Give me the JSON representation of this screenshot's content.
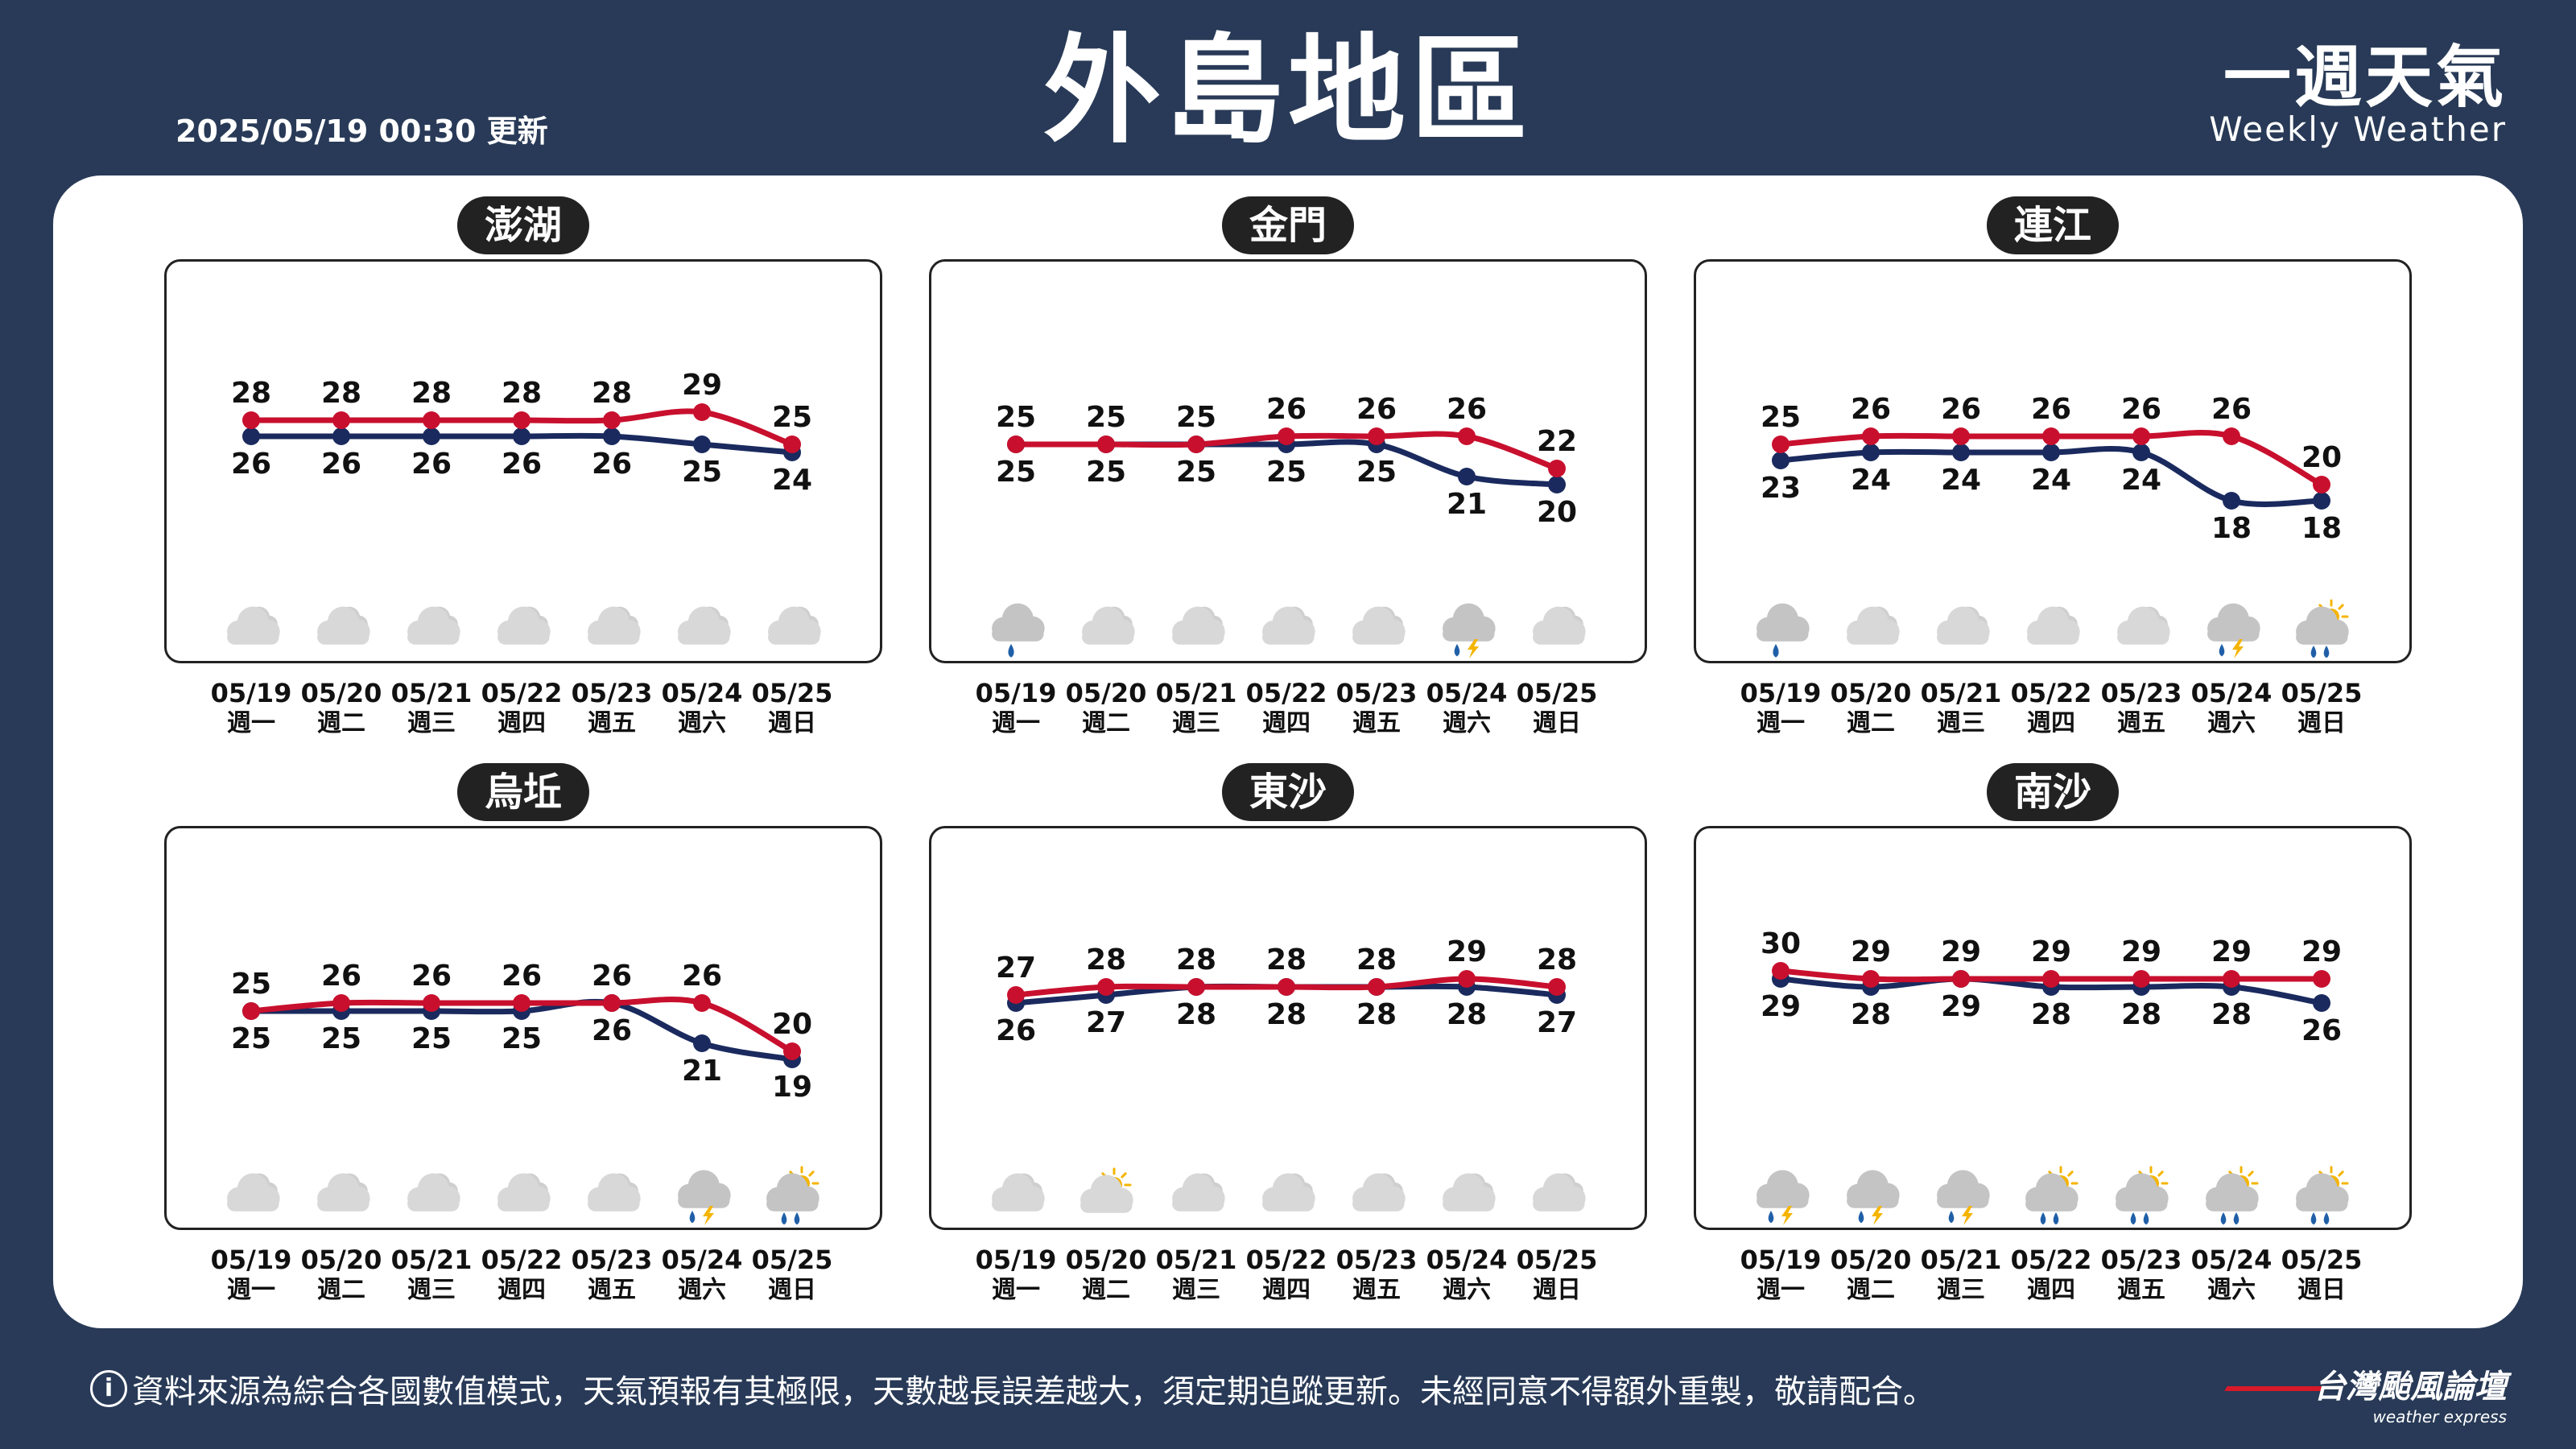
{
  "header": {
    "title": "外島地區",
    "update_time": "2025/05/19 00:30 更新",
    "brand_cn": "一週天氣",
    "brand_en": "Weekly Weather"
  },
  "footer": {
    "info_icon": "i",
    "note": "資料來源為綜合各國數值模式，天氣預報有其極限，天數越長誤差越大，須定期追蹤更新。未經同意不得額外重製，敬請配合。",
    "logo_cn": "台灣颱風論壇",
    "logo_en": "weather express"
  },
  "colors": {
    "background": "#283a57",
    "high_line": "#c8102e",
    "low_line": "#1a2a5e"
  },
  "chart_data": [
    {
      "type": "line",
      "title": "澎湖",
      "categories": [
        "05/19",
        "05/20",
        "05/21",
        "05/22",
        "05/23",
        "05/24",
        "05/25"
      ],
      "weekdays": [
        "週一",
        "週二",
        "週三",
        "週四",
        "週五",
        "週六",
        "週日"
      ],
      "series": [
        {
          "values": [
            28,
            28,
            28,
            28,
            28,
            29,
            25
          ],
          "color": "#c8102e"
        },
        {
          "values": [
            26,
            26,
            26,
            26,
            26,
            25,
            24
          ],
          "color": "#1a2a5e"
        }
      ],
      "icons": [
        "cloudy-icon",
        "cloudy-icon",
        "cloudy-icon",
        "cloudy-icon",
        "cloudy-icon",
        "cloudy-icon",
        "cloudy-icon"
      ]
    },
    {
      "type": "line",
      "title": "金門",
      "categories": [
        "05/19",
        "05/20",
        "05/21",
        "05/22",
        "05/23",
        "05/24",
        "05/25"
      ],
      "weekdays": [
        "週一",
        "週二",
        "週三",
        "週四",
        "週五",
        "週六",
        "週日"
      ],
      "series": [
        {
          "values": [
            25,
            25,
            25,
            26,
            26,
            26,
            22
          ],
          "color": "#c8102e"
        },
        {
          "values": [
            25,
            25,
            25,
            25,
            25,
            21,
            20
          ],
          "color": "#1a2a5e"
        }
      ],
      "icons": [
        "rain-icon",
        "cloudy-icon",
        "cloudy-icon",
        "cloudy-icon",
        "cloudy-icon",
        "thunderstorm-icon",
        "cloudy-icon"
      ]
    },
    {
      "type": "line",
      "title": "連江",
      "categories": [
        "05/19",
        "05/20",
        "05/21",
        "05/22",
        "05/23",
        "05/24",
        "05/25"
      ],
      "weekdays": [
        "週一",
        "週二",
        "週三",
        "週四",
        "週五",
        "週六",
        "週日"
      ],
      "series": [
        {
          "values": [
            25,
            26,
            26,
            26,
            26,
            26,
            20
          ],
          "color": "#c8102e"
        },
        {
          "values": [
            23,
            24,
            24,
            24,
            24,
            18,
            18
          ],
          "color": "#1a2a5e"
        }
      ],
      "icons": [
        "rain-icon",
        "cloudy-icon",
        "cloudy-icon",
        "cloudy-icon",
        "cloudy-icon",
        "thunderstorm-rain-icon",
        "sun-cloud-rain-icon"
      ]
    },
    {
      "type": "line",
      "title": "烏坵",
      "categories": [
        "05/19",
        "05/20",
        "05/21",
        "05/22",
        "05/23",
        "05/24",
        "05/25"
      ],
      "weekdays": [
        "週一",
        "週二",
        "週三",
        "週四",
        "週五",
        "週六",
        "週日"
      ],
      "series": [
        {
          "values": [
            25,
            26,
            26,
            26,
            26,
            26,
            20
          ],
          "color": "#c8102e"
        },
        {
          "values": [
            25,
            25,
            25,
            25,
            26,
            21,
            19
          ],
          "color": "#1a2a5e"
        }
      ],
      "icons": [
        "cloudy-icon",
        "cloudy-icon",
        "cloudy-icon",
        "cloudy-icon",
        "cloudy-icon",
        "thunderstorm-rain-icon",
        "sun-cloud-rain-icon"
      ]
    },
    {
      "type": "line",
      "title": "東沙",
      "categories": [
        "05/19",
        "05/20",
        "05/21",
        "05/22",
        "05/23",
        "05/24",
        "05/25"
      ],
      "weekdays": [
        "週一",
        "週二",
        "週三",
        "週四",
        "週五",
        "週六",
        "週日"
      ],
      "series": [
        {
          "values": [
            27,
            28,
            28,
            28,
            28,
            29,
            28
          ],
          "color": "#c8102e"
        },
        {
          "values": [
            26,
            27,
            28,
            28,
            28,
            28,
            27
          ],
          "color": "#1a2a5e"
        }
      ],
      "icons": [
        "cloudy-icon",
        "sun-cloud-icon",
        "cloudy-icon",
        "cloudy-icon",
        "cloudy-icon",
        "cloudy-icon",
        "cloudy-icon"
      ]
    },
    {
      "type": "line",
      "title": "南沙",
      "categories": [
        "05/19",
        "05/20",
        "05/21",
        "05/22",
        "05/23",
        "05/24",
        "05/25"
      ],
      "weekdays": [
        "週一",
        "週二",
        "週三",
        "週四",
        "週五",
        "週六",
        "週日"
      ],
      "series": [
        {
          "values": [
            30,
            29,
            29,
            29,
            29,
            29,
            29
          ],
          "color": "#c8102e"
        },
        {
          "values": [
            29,
            28,
            29,
            28,
            28,
            28,
            26
          ],
          "color": "#1a2a5e"
        }
      ],
      "icons": [
        "thunderstorm-icon",
        "thunderstorm-icon",
        "thunderstorm-icon",
        "sun-cloud-rain-icon",
        "sun-cloud-rain-icon",
        "sun-cloud-rain-icon",
        "sun-cloud-rain-icon"
      ]
    }
  ]
}
